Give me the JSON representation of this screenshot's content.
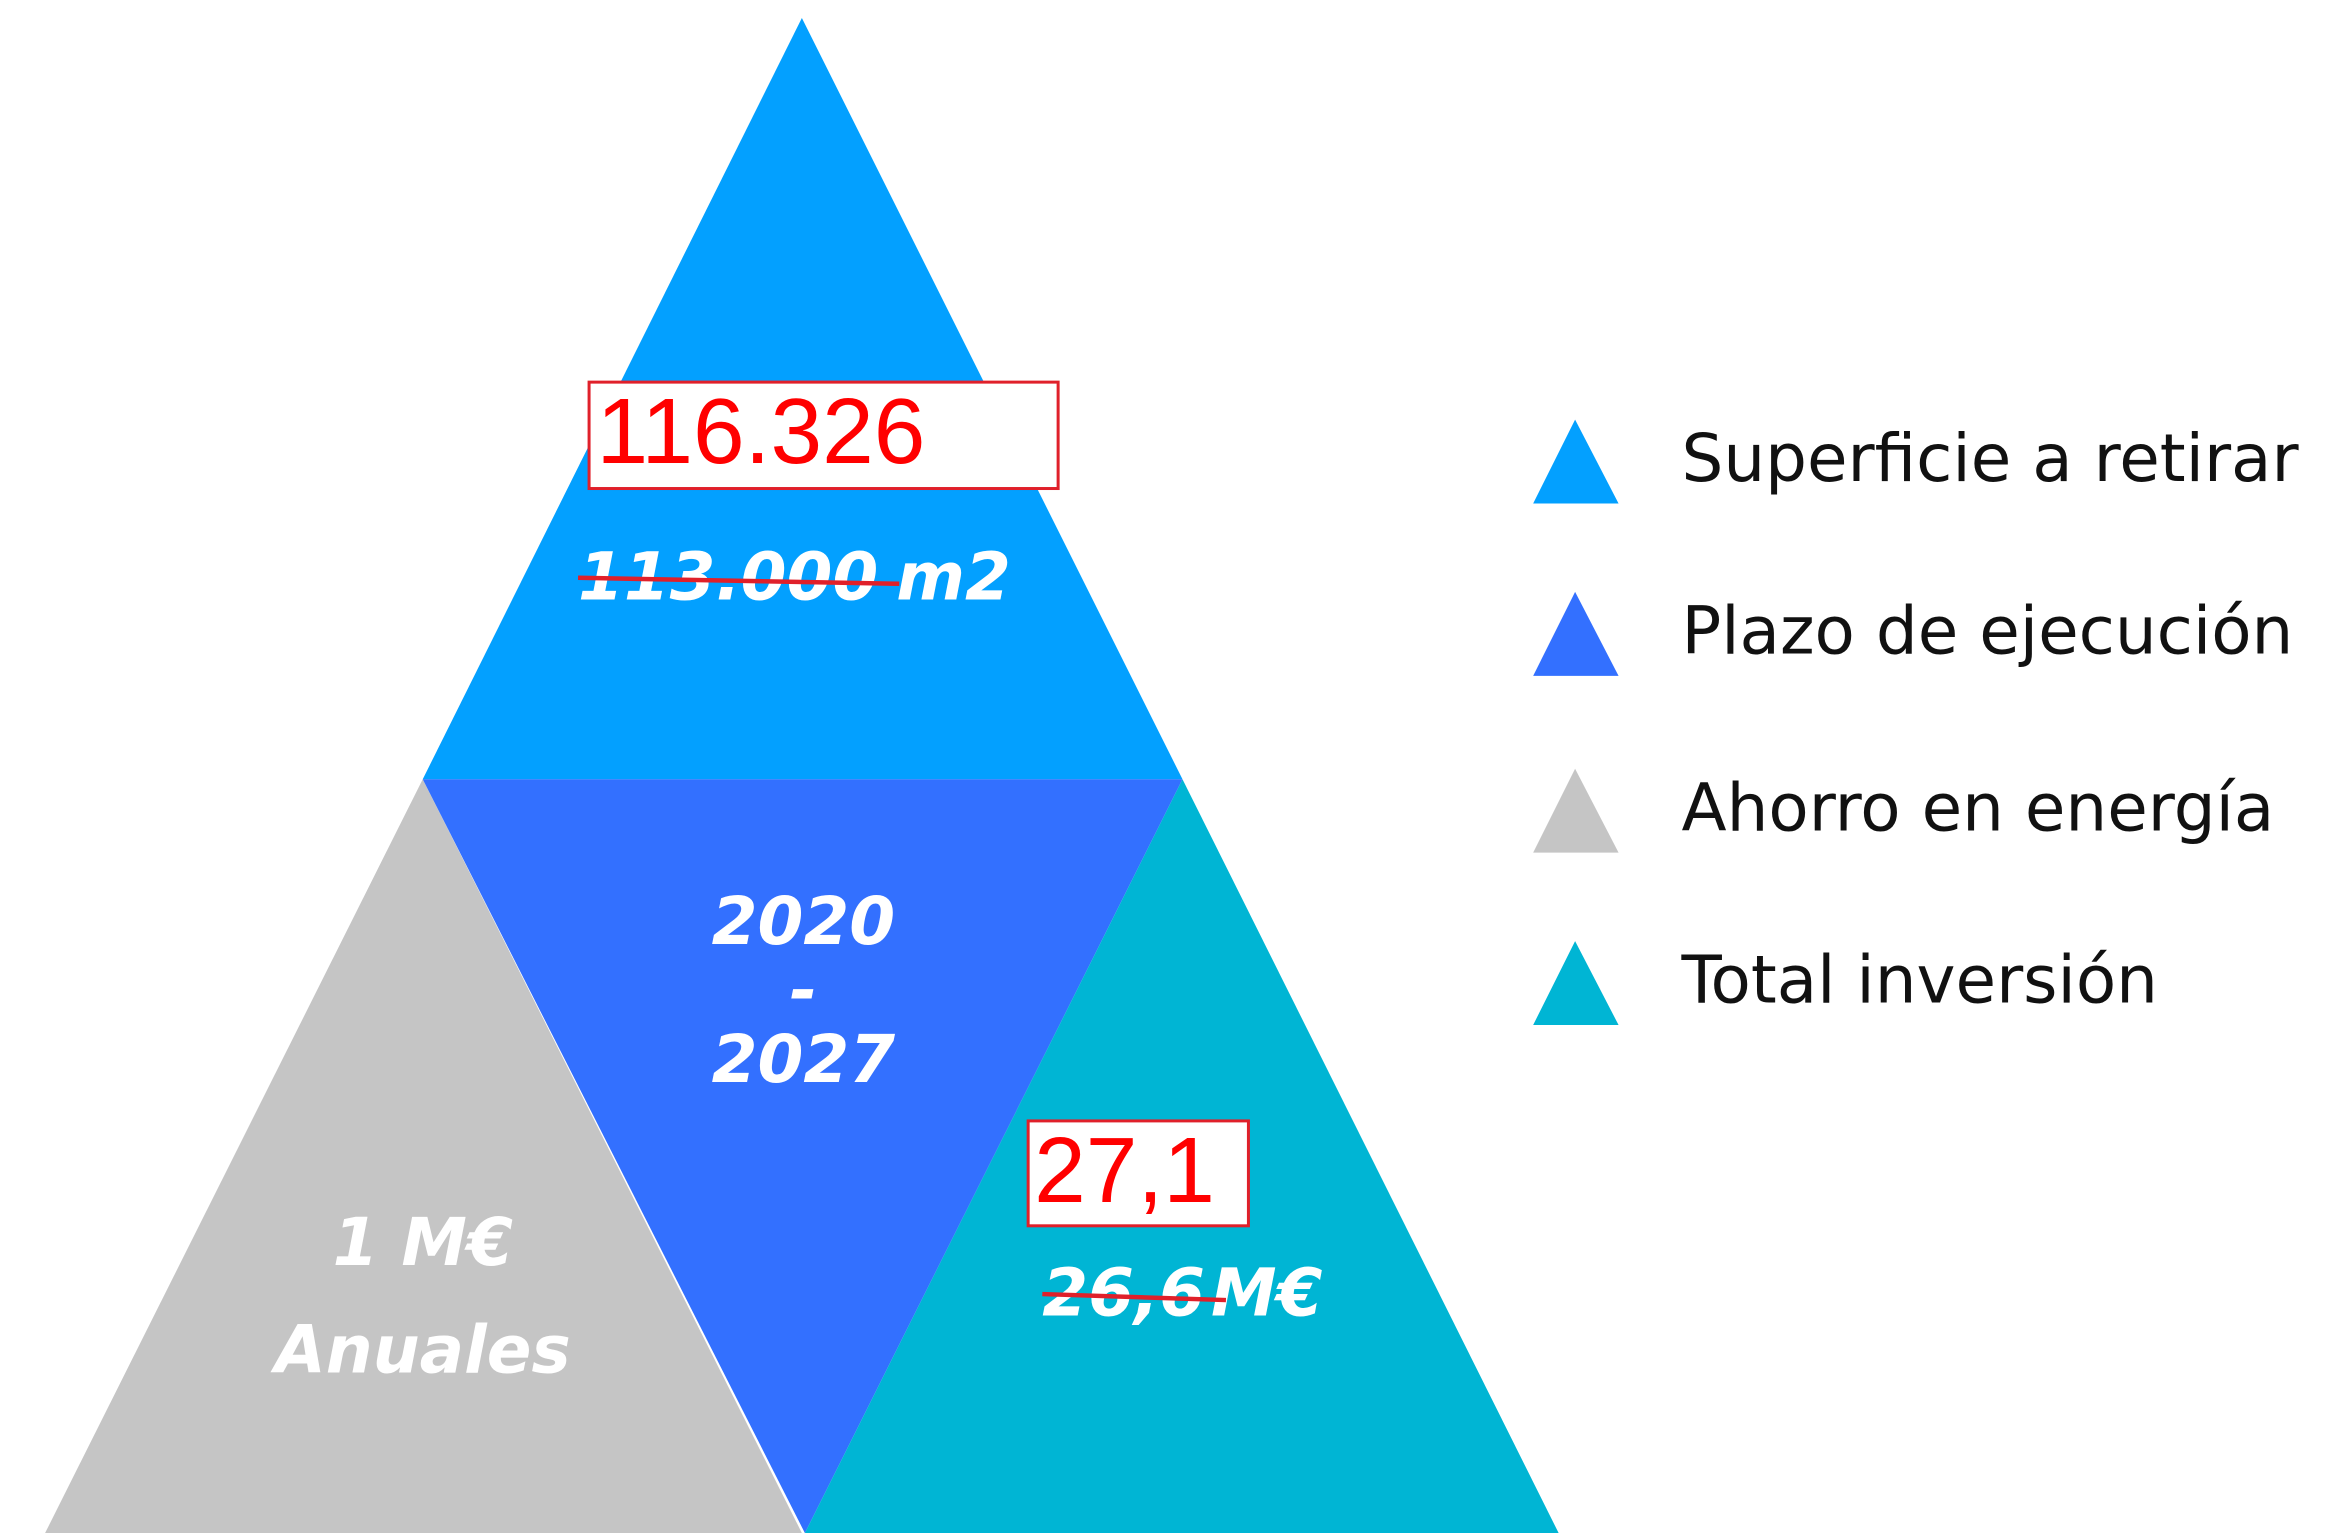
{
  "pyramid": {
    "top": {
      "new_value": "116.326",
      "old_value": "113.000",
      "unit": "m2",
      "color": "#03a0ff"
    },
    "center": {
      "start": "2020",
      "separator": "-",
      "end": "2027",
      "color": "#3370ff"
    },
    "left": {
      "line1": "1 M€",
      "line2": "Anuales",
      "color": "#c5c5c5"
    },
    "right": {
      "new_value": "27,1",
      "old_value": "26,6",
      "unit": "M€",
      "color": "#00b5d4"
    }
  },
  "legend": [
    {
      "label": "Superficie a retirar",
      "color": "#03a0ff"
    },
    {
      "label": "Plazo de ejecución",
      "color": "#3370ff"
    },
    {
      "label": "Ahorro en energía",
      "color": "#c5c5c5"
    },
    {
      "label": "Total inversión",
      "color": "#00b5d4"
    }
  ]
}
